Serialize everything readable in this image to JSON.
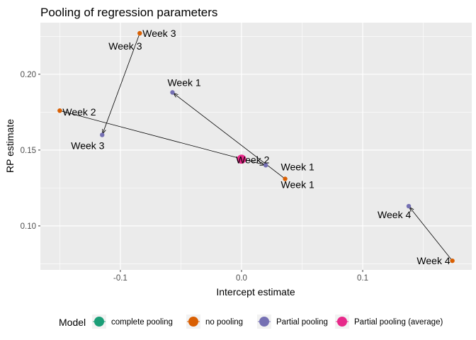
{
  "chart_data": {
    "type": "scatter",
    "title": "Pooling of regression parameters",
    "xlabel": "Intercept estimate",
    "ylabel": "RP estimate",
    "xlim": [
      -0.166,
      0.19
    ],
    "ylim": [
      0.071,
      0.234
    ],
    "x_ticks": [
      {
        "value": -0.1,
        "label": "-0.1"
      },
      {
        "value": 0.0,
        "label": "0.0"
      },
      {
        "value": 0.1,
        "label": "0.1"
      }
    ],
    "y_ticks": [
      {
        "value": 0.1,
        "label": "0.10"
      },
      {
        "value": 0.15,
        "label": "0.15"
      },
      {
        "value": 0.2,
        "label": "0.20"
      }
    ],
    "grid": true,
    "legend": {
      "title": "Model",
      "position": "bottom",
      "entries": [
        {
          "name": "complete pooling",
          "color": "#1b9e77"
        },
        {
          "name": "no pooling",
          "color": "#d95f02"
        },
        {
          "name": "Partial pooling",
          "color": "#7570b3"
        },
        {
          "name": "Partial pooling (average)",
          "color": "#e7298a"
        }
      ]
    },
    "series": [
      {
        "name": "no pooling",
        "color": "#d95f02",
        "points": [
          {
            "label": "Week 1",
            "x": 0.036,
            "y": 0.131
          },
          {
            "label": "Week 2",
            "x": -0.15,
            "y": 0.176
          },
          {
            "label": "Week 3",
            "x": -0.084,
            "y": 0.227
          },
          {
            "label": "Week 4",
            "x": 0.174,
            "y": 0.077
          }
        ]
      },
      {
        "name": "Partial pooling",
        "color": "#7570b3",
        "points": [
          {
            "label": "Week 1",
            "x": -0.057,
            "y": 0.188
          },
          {
            "label": "Week 2",
            "x": 0.02,
            "y": 0.14
          },
          {
            "label": "Week 3",
            "x": -0.115,
            "y": 0.16
          },
          {
            "label": "Week 4",
            "x": 0.138,
            "y": 0.113
          }
        ]
      },
      {
        "name": "Partial pooling (average)",
        "color": "#e7298a",
        "points": [
          {
            "x": 0.0,
            "y": 0.144
          }
        ]
      }
    ]
  }
}
